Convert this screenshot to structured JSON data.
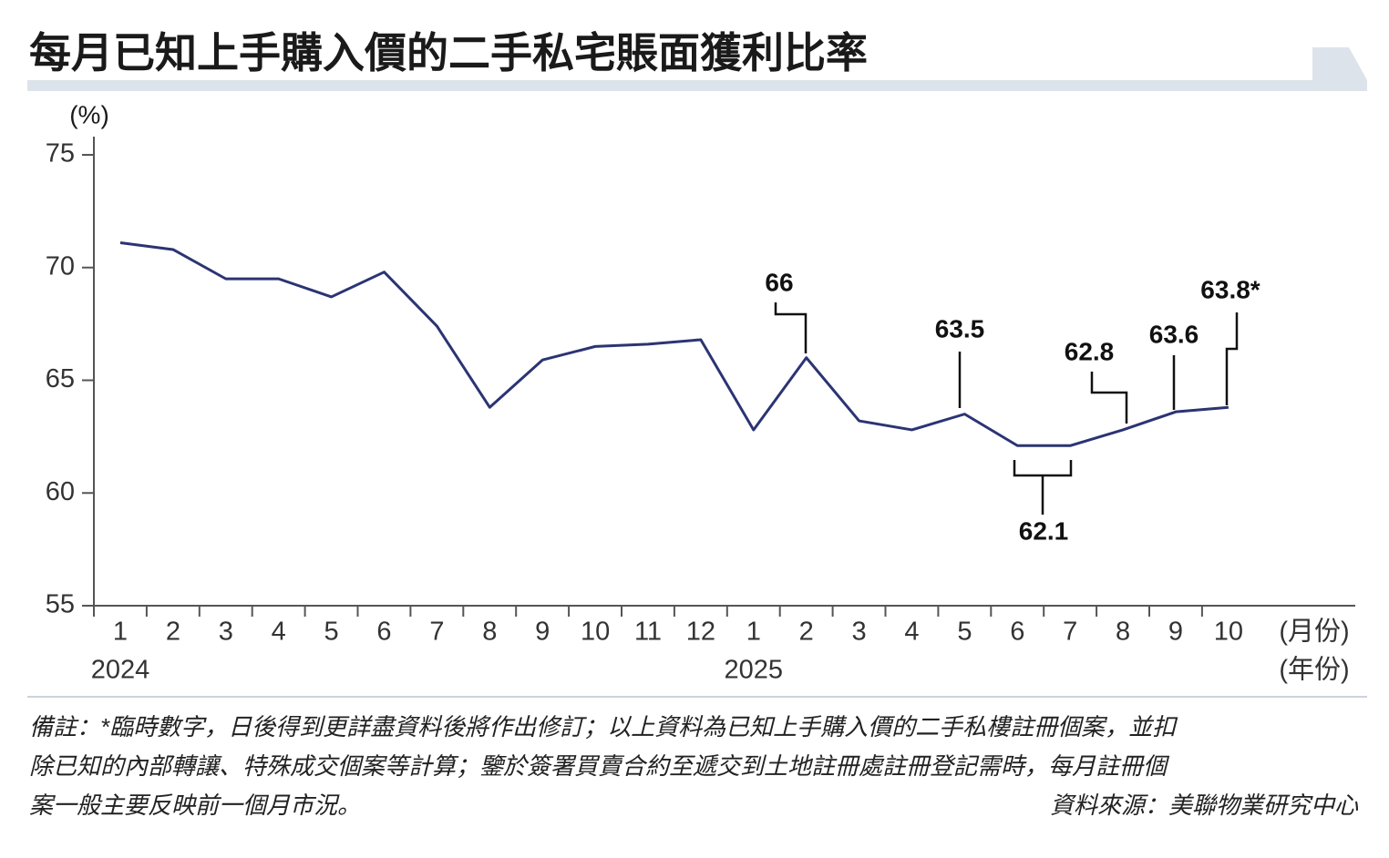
{
  "chart_data": {
    "type": "line",
    "title": "每月已知上手購入價的二手私宅賬面獲利比率",
    "y_unit": "(%)",
    "x_unit": "(月份)",
    "year_unit": "(年份)",
    "categories": [
      "1",
      "2",
      "3",
      "4",
      "5",
      "6",
      "7",
      "8",
      "9",
      "10",
      "11",
      "12",
      "1",
      "2",
      "3",
      "4",
      "5",
      "6",
      "7",
      "8",
      "9",
      "10"
    ],
    "years": [
      "2024",
      "2025"
    ],
    "values": [
      71.1,
      70.8,
      69.5,
      69.5,
      68.7,
      69.8,
      67.4,
      63.8,
      65.9,
      66.5,
      66.6,
      66.8,
      62.8,
      66,
      63.2,
      62.8,
      63.5,
      62.1,
      62.1,
      62.8,
      63.6,
      63.8
    ],
    "value_labels": [
      null,
      null,
      null,
      null,
      null,
      null,
      null,
      null,
      null,
      null,
      null,
      null,
      null,
      "66",
      null,
      null,
      "63.5",
      "62.1",
      null,
      "62.8",
      "63.6",
      "63.8*"
    ],
    "color": "#2b3473",
    "ylim": [
      55,
      75
    ],
    "yticks": [
      55,
      60,
      65,
      70,
      75
    ],
    "grid": false,
    "note_lines": [
      "備註：*臨時數字，日後得到更詳盡資料後將作出修訂；以上資料為已知上手購入價的二手私樓註冊個案，並扣",
      "除已知的內部轉讓、特殊成交個案等計算；鑒於簽署買賣合約至遞交到土地註冊處註冊登記需時，每月註冊個",
      "案一般主要反映前一個月市況。"
    ],
    "source": "資料來源：美聯物業研究中心"
  }
}
